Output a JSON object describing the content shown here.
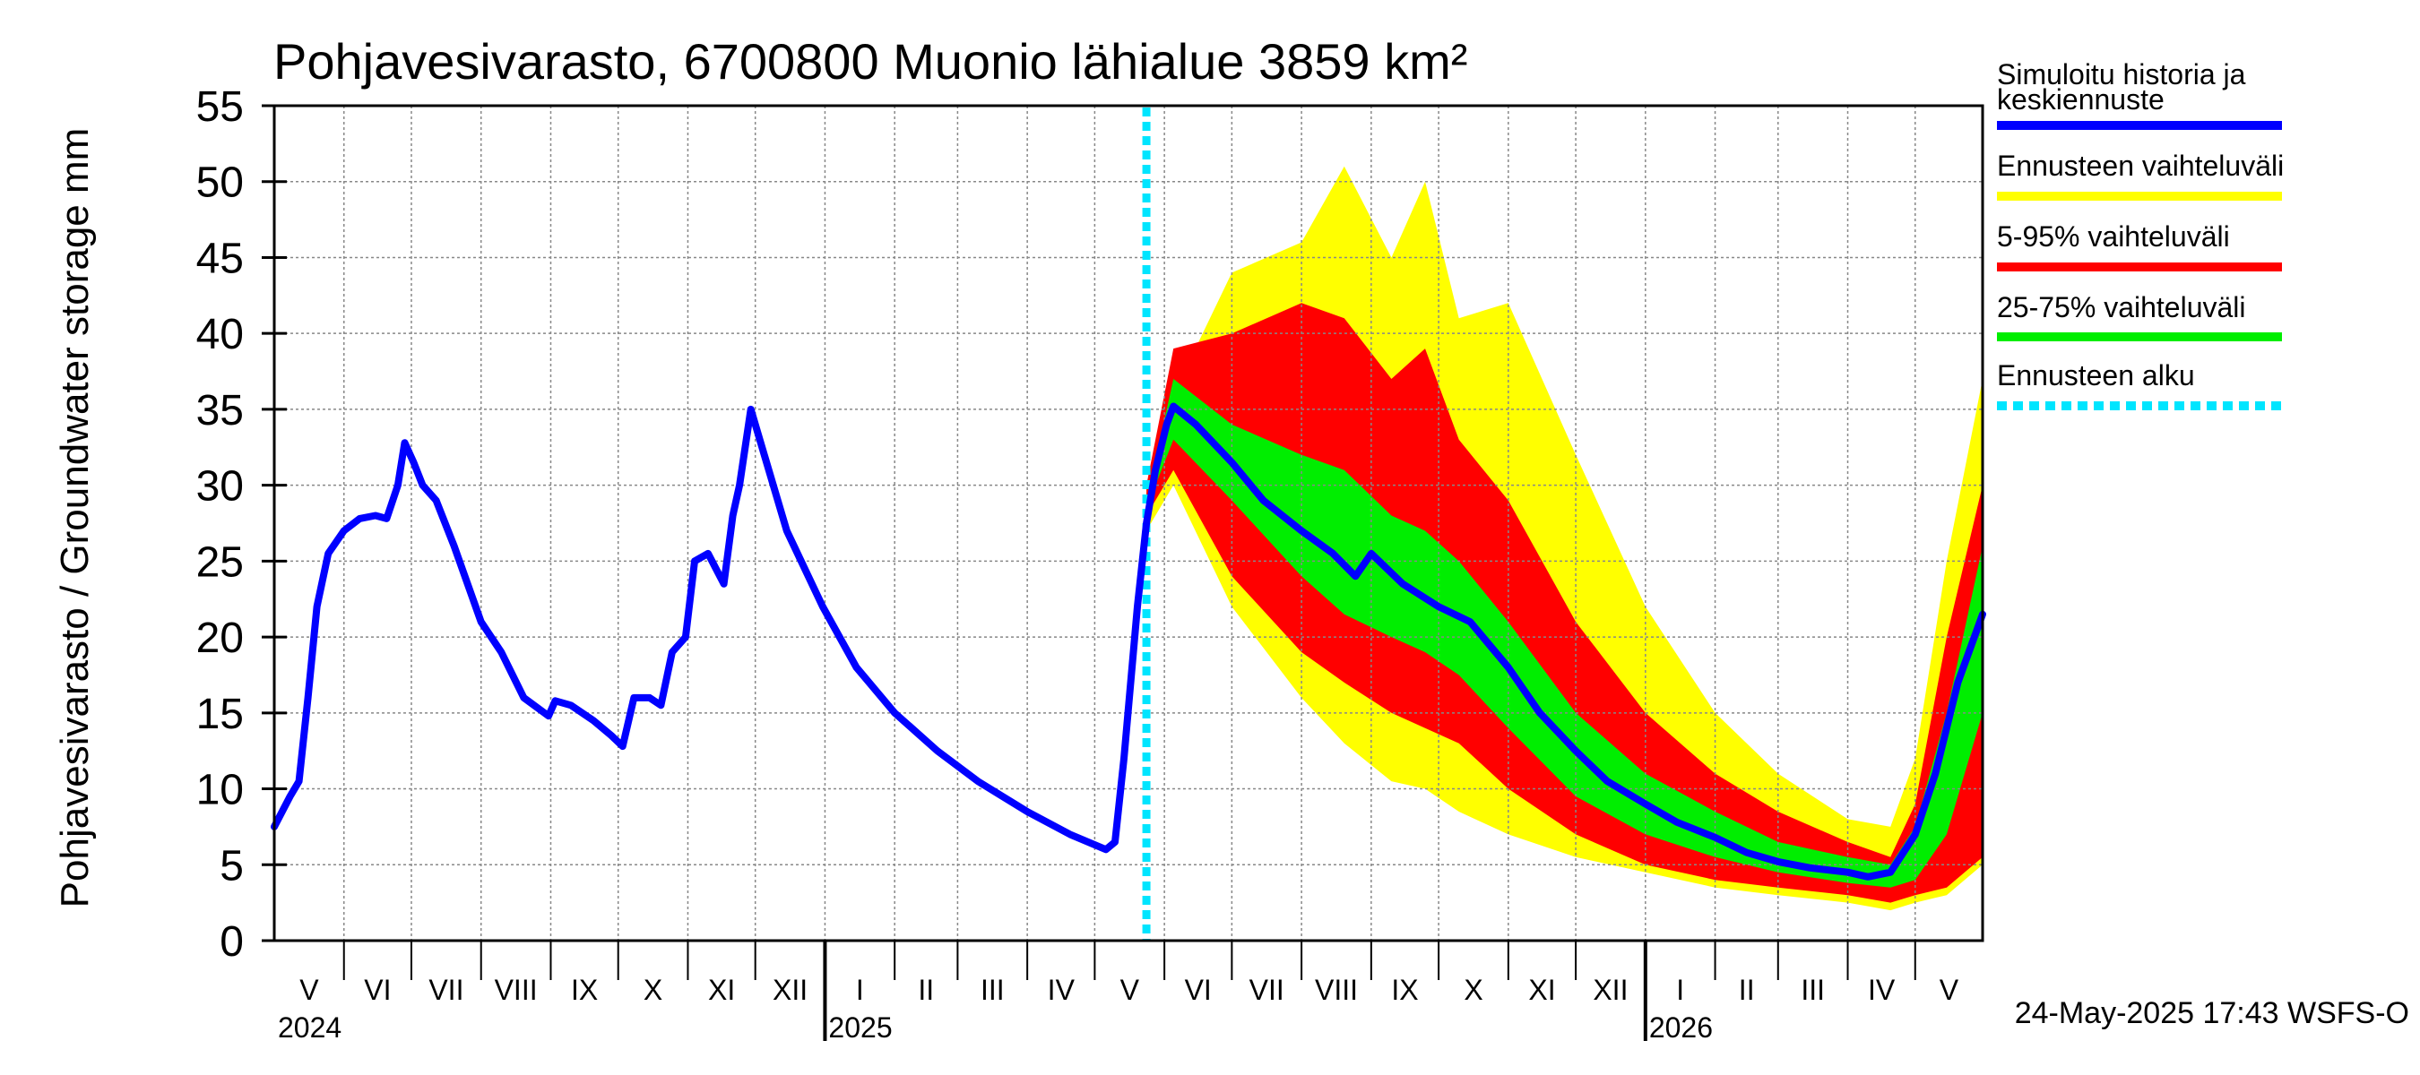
{
  "chart_data": {
    "type": "area",
    "title": "Pohjavesivarasto, 6700800 Muonio lähialue 3859 km²",
    "ylabel": "Pohjavesivarasto / Groundwater storage   mm",
    "ylim": [
      0,
      55
    ],
    "yticks": [
      0,
      5,
      10,
      15,
      20,
      25,
      30,
      35,
      40,
      45,
      50,
      55
    ],
    "xlim": [
      "2024-05-01",
      "2026-05-31"
    ],
    "grid": true,
    "legend_position": "right",
    "month_labels": [
      {
        "label": "V",
        "month": "2024-05"
      },
      {
        "label": "VI",
        "month": "2024-06"
      },
      {
        "label": "VII",
        "month": "2024-07"
      },
      {
        "label": "VIII",
        "month": "2024-08"
      },
      {
        "label": "IX",
        "month": "2024-09"
      },
      {
        "label": "X",
        "month": "2024-10"
      },
      {
        "label": "XI",
        "month": "2024-11"
      },
      {
        "label": "XII",
        "month": "2024-12"
      },
      {
        "label": "I",
        "month": "2025-01"
      },
      {
        "label": "II",
        "month": "2025-02"
      },
      {
        "label": "III",
        "month": "2025-03"
      },
      {
        "label": "IV",
        "month": "2025-04"
      },
      {
        "label": "V",
        "month": "2025-05"
      },
      {
        "label": "VI",
        "month": "2025-06"
      },
      {
        "label": "VII",
        "month": "2025-07"
      },
      {
        "label": "VIII",
        "month": "2025-08"
      },
      {
        "label": "IX",
        "month": "2025-09"
      },
      {
        "label": "X",
        "month": "2025-10"
      },
      {
        "label": "XI",
        "month": "2025-11"
      },
      {
        "label": "XII",
        "month": "2025-12"
      },
      {
        "label": "I",
        "month": "2026-01"
      },
      {
        "label": "II",
        "month": "2026-02"
      },
      {
        "label": "III",
        "month": "2026-03"
      },
      {
        "label": "IV",
        "month": "2026-04"
      },
      {
        "label": "V",
        "month": "2026-05"
      }
    ],
    "year_labels": [
      {
        "label": "2024",
        "date": "2024-05-01"
      },
      {
        "label": "2025",
        "date": "2025-01-01"
      },
      {
        "label": "2026",
        "date": "2026-01-01"
      }
    ],
    "forecast_start": "2025-05-24",
    "colors": {
      "history": "#0000ff",
      "range_full": "#ffff00",
      "range_5_95": "#ff0000",
      "range_25_75": "#00ee00",
      "forecast_start": "#00e5ff",
      "grid": "#888888"
    },
    "series": [
      {
        "name": "Simuloitu historia ja keskiennuste",
        "points": [
          [
            "2024-05-01",
            7.5
          ],
          [
            "2024-05-08",
            9.5
          ],
          [
            "2024-05-12",
            10.5
          ],
          [
            "2024-05-16",
            16
          ],
          [
            "2024-05-20",
            22
          ],
          [
            "2024-05-25",
            25.5
          ],
          [
            "2024-06-01",
            27
          ],
          [
            "2024-06-08",
            27.8
          ],
          [
            "2024-06-15",
            28
          ],
          [
            "2024-06-20",
            27.8
          ],
          [
            "2024-06-25",
            30
          ],
          [
            "2024-06-28",
            32.8
          ],
          [
            "2024-07-02",
            31.5
          ],
          [
            "2024-07-06",
            30
          ],
          [
            "2024-07-12",
            29
          ],
          [
            "2024-07-20",
            26
          ],
          [
            "2024-08-01",
            21
          ],
          [
            "2024-08-10",
            19
          ],
          [
            "2024-08-20",
            16
          ],
          [
            "2024-08-31",
            14.8
          ],
          [
            "2024-09-03",
            15.8
          ],
          [
            "2024-09-10",
            15.5
          ],
          [
            "2024-09-20",
            14.5
          ],
          [
            "2024-09-28",
            13.5
          ],
          [
            "2024-10-03",
            12.8
          ],
          [
            "2024-10-08",
            16
          ],
          [
            "2024-10-15",
            16
          ],
          [
            "2024-10-20",
            15.5
          ],
          [
            "2024-10-25",
            19
          ],
          [
            "2024-10-31",
            20
          ],
          [
            "2024-11-04",
            25
          ],
          [
            "2024-11-10",
            25.5
          ],
          [
            "2024-11-17",
            23.5
          ],
          [
            "2024-11-21",
            28
          ],
          [
            "2024-11-24",
            30
          ],
          [
            "2024-11-29",
            35
          ],
          [
            "2024-12-05",
            32
          ],
          [
            "2024-12-15",
            27
          ],
          [
            "2024-12-31",
            22
          ],
          [
            "2025-01-15",
            18
          ],
          [
            "2025-02-01",
            15
          ],
          [
            "2025-02-20",
            12.5
          ],
          [
            "2025-03-10",
            10.5
          ],
          [
            "2025-04-01",
            8.5
          ],
          [
            "2025-04-20",
            7
          ],
          [
            "2025-05-06",
            6
          ],
          [
            "2025-05-10",
            6.5
          ],
          [
            "2025-05-14",
            12
          ],
          [
            "2025-05-20",
            22
          ],
          [
            "2025-05-24",
            27.5
          ],
          [
            "2025-05-28",
            31
          ],
          [
            "2025-06-02",
            34
          ],
          [
            "2025-06-05",
            35.2
          ],
          [
            "2025-06-15",
            34
          ],
          [
            "2025-07-01",
            31.5
          ],
          [
            "2025-07-15",
            29
          ],
          [
            "2025-08-01",
            27
          ],
          [
            "2025-08-15",
            25.5
          ],
          [
            "2025-08-25",
            24
          ],
          [
            "2025-09-01",
            25.5
          ],
          [
            "2025-09-15",
            23.5
          ],
          [
            "2025-10-01",
            22
          ],
          [
            "2025-10-15",
            21
          ],
          [
            "2025-11-01",
            18
          ],
          [
            "2025-11-15",
            15
          ],
          [
            "2025-12-01",
            12.5
          ],
          [
            "2025-12-15",
            10.5
          ],
          [
            "2026-01-01",
            9
          ],
          [
            "2026-01-15",
            7.8
          ],
          [
            "2026-02-01",
            6.8
          ],
          [
            "2026-02-15",
            5.8
          ],
          [
            "2026-03-01",
            5.2
          ],
          [
            "2026-03-15",
            4.8
          ],
          [
            "2026-04-01",
            4.5
          ],
          [
            "2026-04-10",
            4.2
          ],
          [
            "2026-04-20",
            4.5
          ],
          [
            "2026-05-01",
            7
          ],
          [
            "2026-05-10",
            11
          ],
          [
            "2026-05-20",
            17
          ],
          [
            "2026-05-31",
            21.5
          ]
        ]
      }
    ],
    "bands": [
      {
        "name": "Ennusteen vaihteluväli",
        "x": [
          "2025-05-24",
          "2025-06-05",
          "2025-07-01",
          "2025-08-01",
          "2025-08-20",
          "2025-09-10",
          "2025-09-25",
          "2025-10-10",
          "2025-11-01",
          "2025-12-01",
          "2026-01-01",
          "2026-02-01",
          "2026-03-01",
          "2026-04-01",
          "2026-04-20",
          "2026-05-01",
          "2026-05-15",
          "2026-05-31"
        ],
        "upper": [
          30,
          36,
          44,
          46,
          51,
          45,
          50,
          41,
          42,
          32,
          22,
          15,
          11,
          8,
          7.5,
          12,
          25,
          37
        ],
        "lower": [
          27,
          30,
          22,
          16,
          13,
          10.5,
          10,
          8.5,
          7,
          5.5,
          4.5,
          3.5,
          3,
          2.5,
          2,
          2.5,
          3,
          5
        ]
      },
      {
        "name": "5-95% vaihteluväli",
        "x": [
          "2025-05-24",
          "2025-06-05",
          "2025-07-01",
          "2025-08-01",
          "2025-08-20",
          "2025-09-10",
          "2025-09-25",
          "2025-10-10",
          "2025-11-01",
          "2025-12-01",
          "2026-01-01",
          "2026-02-01",
          "2026-03-01",
          "2026-04-01",
          "2026-04-20",
          "2026-05-01",
          "2026-05-15",
          "2026-05-31"
        ],
        "upper": [
          30,
          39,
          40,
          42,
          41,
          37,
          39,
          33,
          29,
          21,
          15,
          11,
          8.5,
          6.5,
          5.5,
          9,
          20,
          30
        ],
        "lower": [
          28,
          31,
          24,
          19,
          17,
          15,
          14,
          13,
          10,
          7,
          5,
          4,
          3.5,
          3,
          2.5,
          3,
          3.5,
          5.5
        ]
      },
      {
        "name": "25-75% vaihteluväli",
        "x": [
          "2025-05-24",
          "2025-06-05",
          "2025-07-01",
          "2025-08-01",
          "2025-08-20",
          "2025-09-10",
          "2025-09-25",
          "2025-10-10",
          "2025-11-01",
          "2025-12-01",
          "2026-01-01",
          "2026-02-01",
          "2026-03-01",
          "2026-04-01",
          "2026-04-20",
          "2026-05-01",
          "2026-05-15",
          "2026-05-31"
        ],
        "upper": [
          29,
          37,
          34,
          32,
          31,
          28,
          27,
          25,
          21,
          15,
          11,
          8.5,
          6.5,
          5.5,
          5,
          7.5,
          15,
          26
        ],
        "lower": [
          28.5,
          33,
          29,
          24,
          21.5,
          20,
          19,
          17.5,
          14,
          9.5,
          7,
          5.5,
          4.5,
          3.8,
          3.5,
          4,
          7,
          15
        ]
      }
    ],
    "legend": [
      {
        "label": "Simuloitu historia ja keskiennuste",
        "color": "#0000ff",
        "style": "solid"
      },
      {
        "label": "Ennusteen vaihteluväli",
        "color": "#ffff00",
        "style": "solid"
      },
      {
        "label": "5-95% vaihteluväli",
        "color": "#ff0000",
        "style": "solid"
      },
      {
        "label": "25-75% vaihteluväli",
        "color": "#00ee00",
        "style": "solid"
      },
      {
        "label": "Ennusteen alku",
        "color": "#00e5ff",
        "style": "dotted"
      }
    ],
    "footer": "24-May-2025 17:43 WSFS-O"
  }
}
